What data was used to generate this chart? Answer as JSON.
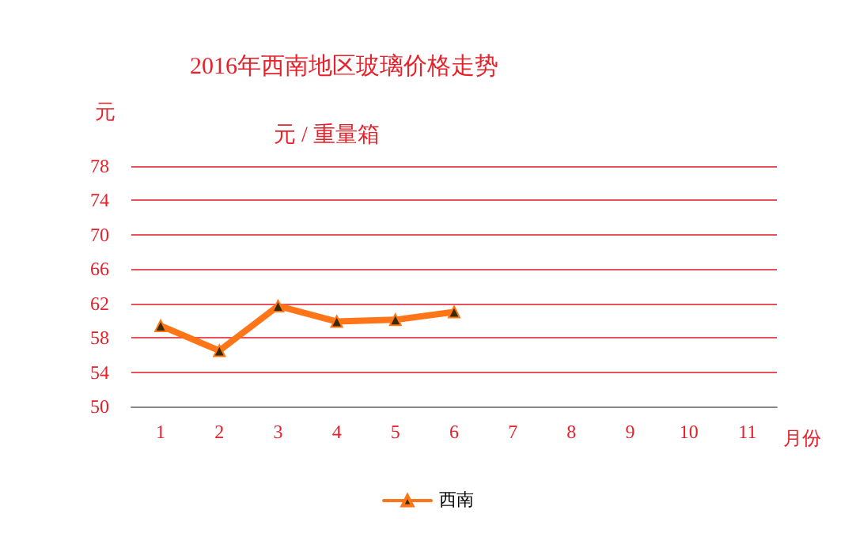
{
  "chart_data": {
    "type": "line",
    "title": "2016年西南地区玻璃价格走势",
    "subtitle": "元 / 重量箱",
    "ylabel": "元",
    "xlabel": "月份",
    "categories": [
      "1",
      "2",
      "3",
      "4",
      "5",
      "6",
      "7",
      "8",
      "9",
      "10",
      "11"
    ],
    "series": [
      {
        "name": "西南",
        "color": "#ff7518",
        "values": [
          59.4,
          56.5,
          61.7,
          59.9,
          60.1,
          61.0,
          null,
          null,
          null,
          null,
          null
        ]
      }
    ],
    "ylim": [
      50,
      78
    ],
    "yticks": [
      50,
      54,
      58,
      62,
      66,
      70,
      74,
      78
    ],
    "grid": "y",
    "legend": "bottom",
    "marker": "triangle",
    "line_style": "solid"
  }
}
